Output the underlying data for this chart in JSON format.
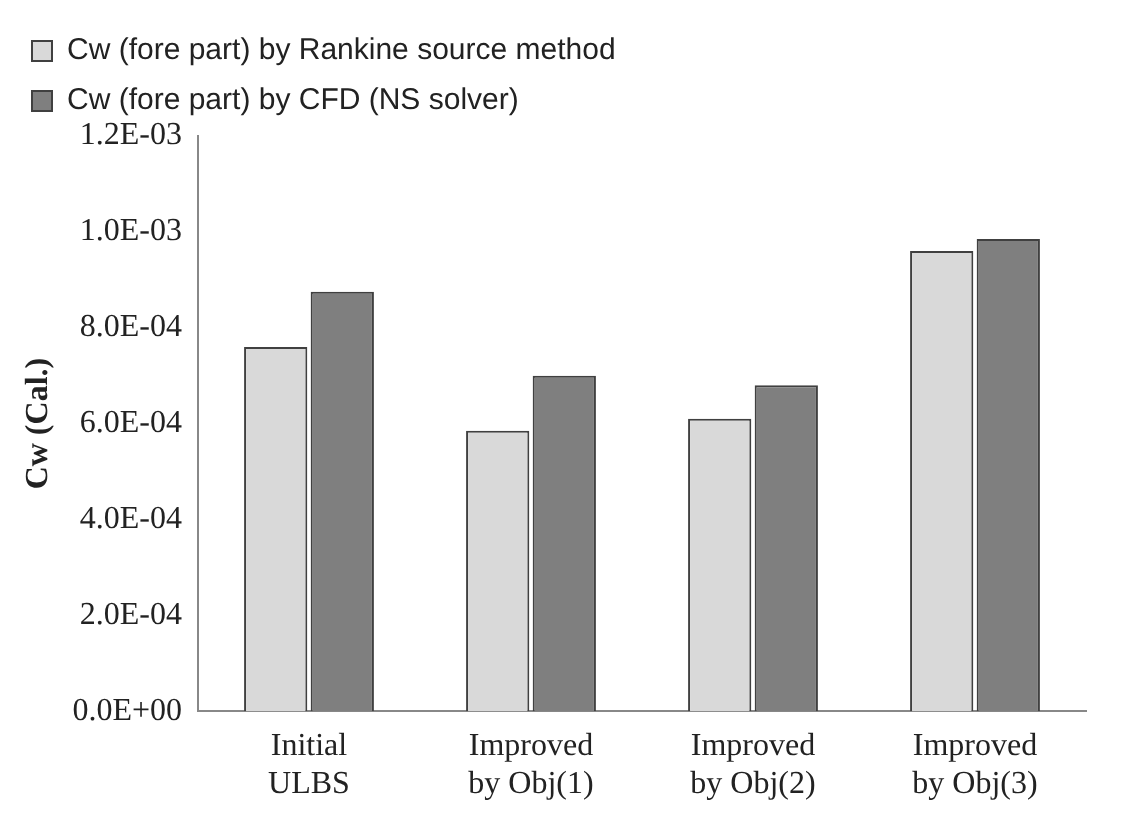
{
  "chart_data": {
    "type": "bar",
    "ylabel": "Cw (Cal.)",
    "categories": [
      "Initial\nULBS",
      "Improved\nby Obj(1)",
      "Improved\nby Obj(2)",
      "Improved\nby Obj(3)"
    ],
    "series": [
      {
        "name": "Cw (fore part) by Rankine source method",
        "color": "#d9d9d9",
        "values": [
          0.00076,
          0.000585,
          0.00061,
          0.00096
        ]
      },
      {
        "name": "Cw (fore part) by CFD (NS solver)",
        "color": "#7f7f7f",
        "values": [
          0.000875,
          0.0007,
          0.00068,
          0.000985
        ]
      }
    ],
    "ylim": [
      0,
      0.0012
    ],
    "yticks": [
      {
        "value": 0,
        "label": "0.0E+00"
      },
      {
        "value": 0.0002,
        "label": "2.0E-04"
      },
      {
        "value": 0.0004,
        "label": "4.0E-04"
      },
      {
        "value": 0.0006,
        "label": "6.0E-04"
      },
      {
        "value": 0.0008,
        "label": "8.0E-04"
      },
      {
        "value": 0.001,
        "label": "1.0E-03"
      },
      {
        "value": 0.0012,
        "label": "1.2E-03"
      }
    ],
    "grid": false,
    "legend": "top left"
  }
}
